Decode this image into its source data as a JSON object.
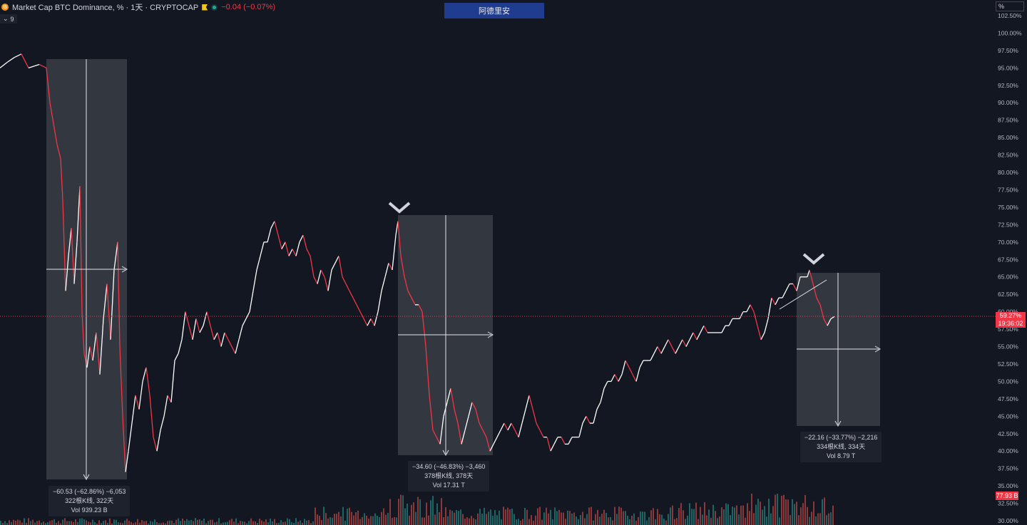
{
  "header": {
    "symbol": "Market Cap BTC Dominance, % · 1天 · CRYPTOCAP",
    "change": "−0.04 (−0.07%)",
    "coin_glyph": "B",
    "indicator_count": "9"
  },
  "banner": {
    "label": "阿德里安"
  },
  "price_scale": {
    "unit_box": "%",
    "current_value": "59.27%",
    "countdown": "19:36:02",
    "volume_label": "77.93 B",
    "current_color": "#f23645"
  },
  "colors": {
    "up": "#ffffff",
    "down": "#f23645",
    "vol_up": "#26a69a",
    "vol_down": "#ef5350",
    "measure_box": "#3a3d45"
  },
  "chart_data": {
    "type": "line",
    "title": "Market Cap BTC Dominance, %",
    "ylabel": "%",
    "ylim": [
      30,
      102.5
    ],
    "yticks": [
      "102.50%",
      "100.00%",
      "97.50%",
      "95.00%",
      "92.50%",
      "90.00%",
      "87.50%",
      "85.00%",
      "82.50%",
      "80.00%",
      "77.50%",
      "75.00%",
      "72.50%",
      "70.00%",
      "67.50%",
      "65.00%",
      "62.50%",
      "60.00%",
      "57.50%",
      "55.00%",
      "52.50%",
      "50.00%",
      "47.50%",
      "45.00%",
      "42.50%",
      "40.00%",
      "37.50%",
      "35.00%",
      "32.50%",
      "30.00%"
    ],
    "current": 59.27,
    "series": [
      {
        "values": [
          [
            0,
            95
          ],
          [
            10,
            95.8
          ],
          [
            20,
            96.5
          ],
          [
            30,
            97
          ],
          [
            40,
            95
          ],
          [
            55,
            95.5
          ],
          [
            65,
            95
          ],
          [
            70,
            90
          ],
          [
            75,
            87
          ],
          [
            80,
            84
          ],
          [
            85,
            82
          ],
          [
            88,
            76
          ],
          [
            92,
            63
          ],
          [
            96,
            68
          ],
          [
            100,
            72
          ],
          [
            104,
            64
          ],
          [
            108,
            70
          ],
          [
            112,
            78
          ],
          [
            115,
            60
          ],
          [
            118,
            54
          ],
          [
            122,
            52
          ],
          [
            126,
            55
          ],
          [
            130,
            53
          ],
          [
            135,
            57
          ],
          [
            140,
            51
          ],
          [
            145,
            59
          ],
          [
            150,
            64
          ],
          [
            155,
            56
          ],
          [
            160,
            66
          ],
          [
            165,
            70
          ],
          [
            168,
            55
          ],
          [
            172,
            45
          ],
          [
            176,
            37
          ],
          [
            180,
            40
          ],
          [
            185,
            44
          ],
          [
            190,
            48
          ],
          [
            195,
            46
          ],
          [
            200,
            50
          ],
          [
            205,
            52
          ],
          [
            210,
            48
          ],
          [
            215,
            42
          ],
          [
            220,
            40
          ],
          [
            225,
            43
          ],
          [
            230,
            45
          ],
          [
            235,
            48
          ],
          [
            240,
            47
          ],
          [
            245,
            53
          ],
          [
            250,
            54
          ],
          [
            255,
            56
          ],
          [
            260,
            60
          ],
          [
            265,
            58
          ],
          [
            270,
            56
          ],
          [
            275,
            59
          ],
          [
            280,
            57
          ],
          [
            285,
            58
          ],
          [
            290,
            60
          ],
          [
            295,
            58
          ],
          [
            300,
            56
          ],
          [
            305,
            57
          ],
          [
            310,
            55
          ],
          [
            315,
            57
          ],
          [
            320,
            56
          ],
          [
            325,
            55
          ],
          [
            330,
            54
          ],
          [
            335,
            56
          ],
          [
            340,
            58
          ],
          [
            345,
            59
          ],
          [
            350,
            60
          ],
          [
            355,
            63
          ],
          [
            360,
            66
          ],
          [
            365,
            68
          ],
          [
            370,
            70
          ],
          [
            375,
            70
          ],
          [
            380,
            72
          ],
          [
            385,
            73
          ],
          [
            390,
            71
          ],
          [
            395,
            69
          ],
          [
            400,
            70
          ],
          [
            405,
            68
          ],
          [
            410,
            69
          ],
          [
            415,
            68
          ],
          [
            420,
            70
          ],
          [
            425,
            71
          ],
          [
            430,
            69
          ],
          [
            435,
            68
          ],
          [
            440,
            65
          ],
          [
            445,
            64
          ],
          [
            450,
            66
          ],
          [
            455,
            65
          ],
          [
            460,
            63
          ],
          [
            465,
            66
          ],
          [
            470,
            67
          ],
          [
            475,
            68
          ],
          [
            480,
            65
          ],
          [
            485,
            64
          ],
          [
            490,
            63
          ],
          [
            495,
            62
          ],
          [
            500,
            61
          ],
          [
            505,
            60
          ],
          [
            510,
            59
          ],
          [
            515,
            58
          ],
          [
            520,
            59
          ],
          [
            525,
            58
          ],
          [
            530,
            60
          ],
          [
            535,
            63
          ],
          [
            540,
            65
          ],
          [
            545,
            67
          ],
          [
            550,
            66
          ],
          [
            555,
            71
          ],
          [
            558,
            73
          ],
          [
            562,
            68
          ],
          [
            567,
            65
          ],
          [
            572,
            63
          ],
          [
            577,
            62
          ],
          [
            582,
            61
          ],
          [
            587,
            61
          ],
          [
            592,
            60
          ],
          [
            597,
            55
          ],
          [
            602,
            48
          ],
          [
            607,
            43
          ],
          [
            612,
            42
          ],
          [
            617,
            41
          ],
          [
            622,
            45
          ],
          [
            627,
            47
          ],
          [
            632,
            49
          ],
          [
            637,
            46
          ],
          [
            642,
            44
          ],
          [
            647,
            41
          ],
          [
            652,
            43
          ],
          [
            657,
            45
          ],
          [
            662,
            47
          ],
          [
            667,
            46
          ],
          [
            672,
            44
          ],
          [
            677,
            43
          ],
          [
            682,
            42
          ],
          [
            687,
            40
          ],
          [
            692,
            41
          ],
          [
            697,
            42
          ],
          [
            702,
            43
          ],
          [
            707,
            44
          ],
          [
            712,
            43
          ],
          [
            717,
            44
          ],
          [
            722,
            43
          ],
          [
            727,
            42
          ],
          [
            732,
            44
          ],
          [
            737,
            46
          ],
          [
            742,
            48
          ],
          [
            747,
            46
          ],
          [
            752,
            44
          ],
          [
            757,
            43
          ],
          [
            762,
            42
          ],
          [
            767,
            42
          ],
          [
            772,
            40
          ],
          [
            777,
            41
          ],
          [
            782,
            42
          ],
          [
            787,
            42
          ],
          [
            792,
            41
          ],
          [
            797,
            41
          ],
          [
            802,
            42
          ],
          [
            807,
            42
          ],
          [
            812,
            42
          ],
          [
            817,
            44
          ],
          [
            822,
            45
          ],
          [
            827,
            44
          ],
          [
            832,
            44
          ],
          [
            837,
            46
          ],
          [
            842,
            47
          ],
          [
            847,
            49
          ],
          [
            852,
            50
          ],
          [
            857,
            50
          ],
          [
            862,
            51
          ],
          [
            867,
            50
          ],
          [
            872,
            51
          ],
          [
            877,
            53
          ],
          [
            882,
            52
          ],
          [
            887,
            51
          ],
          [
            892,
            50
          ],
          [
            897,
            52
          ],
          [
            902,
            53
          ],
          [
            907,
            53
          ],
          [
            912,
            53
          ],
          [
            917,
            54
          ],
          [
            922,
            55
          ],
          [
            927,
            54
          ],
          [
            932,
            55
          ],
          [
            937,
            56
          ],
          [
            942,
            55
          ],
          [
            947,
            54
          ],
          [
            952,
            55
          ],
          [
            957,
            56
          ],
          [
            962,
            55
          ],
          [
            967,
            56
          ],
          [
            972,
            57
          ],
          [
            977,
            56
          ],
          [
            982,
            57
          ],
          [
            987,
            58
          ],
          [
            992,
            57
          ],
          [
            997,
            57
          ],
          [
            1002,
            57
          ],
          [
            1007,
            57
          ],
          [
            1012,
            57
          ],
          [
            1017,
            58
          ],
          [
            1022,
            58
          ],
          [
            1027,
            59
          ],
          [
            1032,
            59
          ],
          [
            1037,
            59
          ],
          [
            1042,
            60
          ],
          [
            1047,
            60
          ],
          [
            1052,
            61
          ],
          [
            1057,
            60
          ],
          [
            1062,
            58
          ],
          [
            1067,
            56
          ],
          [
            1072,
            57
          ],
          [
            1077,
            59
          ],
          [
            1082,
            62
          ],
          [
            1087,
            61
          ],
          [
            1092,
            62
          ],
          [
            1097,
            62
          ],
          [
            1102,
            63
          ],
          [
            1107,
            64
          ],
          [
            1112,
            64
          ],
          [
            1117,
            63
          ],
          [
            1122,
            65
          ],
          [
            1127,
            65
          ],
          [
            1132,
            65
          ],
          [
            1135,
            66
          ],
          [
            1140,
            64
          ],
          [
            1145,
            62
          ],
          [
            1150,
            61
          ],
          [
            1155,
            59
          ],
          [
            1160,
            58
          ],
          [
            1165,
            59
          ],
          [
            1170,
            59.3
          ]
        ]
      }
    ],
    "x_domain": [
      0,
      1170
    ]
  },
  "measurements": [
    {
      "line1": "−60.53 (−62.86%) −6,053",
      "line2": "322根K线, 322天",
      "line3": "Vol 939.23 B"
    },
    {
      "line1": "−34.60 (−46.83%) −3,460",
      "line2": "378根K线, 378天",
      "line3": "Vol 17.31 T"
    },
    {
      "line1": "−22.16 (−33.77%) −2,216",
      "line2": "334根K线, 334天",
      "line3": "Vol 8.79 T"
    }
  ]
}
